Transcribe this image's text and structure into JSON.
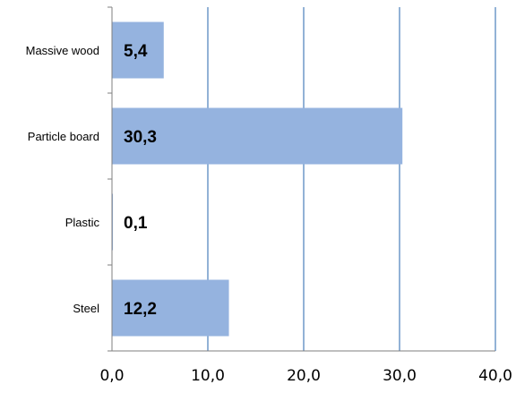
{
  "chart_data": {
    "type": "bar",
    "orientation": "horizontal",
    "title": "",
    "xlabel": "",
    "ylabel": "",
    "categories": [
      "Massive wood",
      "Particle board",
      "Plastic",
      "Steel"
    ],
    "values": [
      5.4,
      30.3,
      0.1,
      12.2
    ],
    "data_labels": [
      "5,4",
      "30,3",
      "0,1",
      "12,2"
    ],
    "xlim": [
      0,
      40
    ],
    "xticks": [
      0,
      10,
      20,
      30,
      40
    ],
    "xtick_labels": [
      "0,0",
      "10,0",
      "20,0",
      "30,0",
      "40,0"
    ],
    "grid": "vertical",
    "legend": "none",
    "colors": {
      "bar": "#95b3df",
      "gridline": "#4a7ebb",
      "axis": "#7f7f7f"
    }
  }
}
